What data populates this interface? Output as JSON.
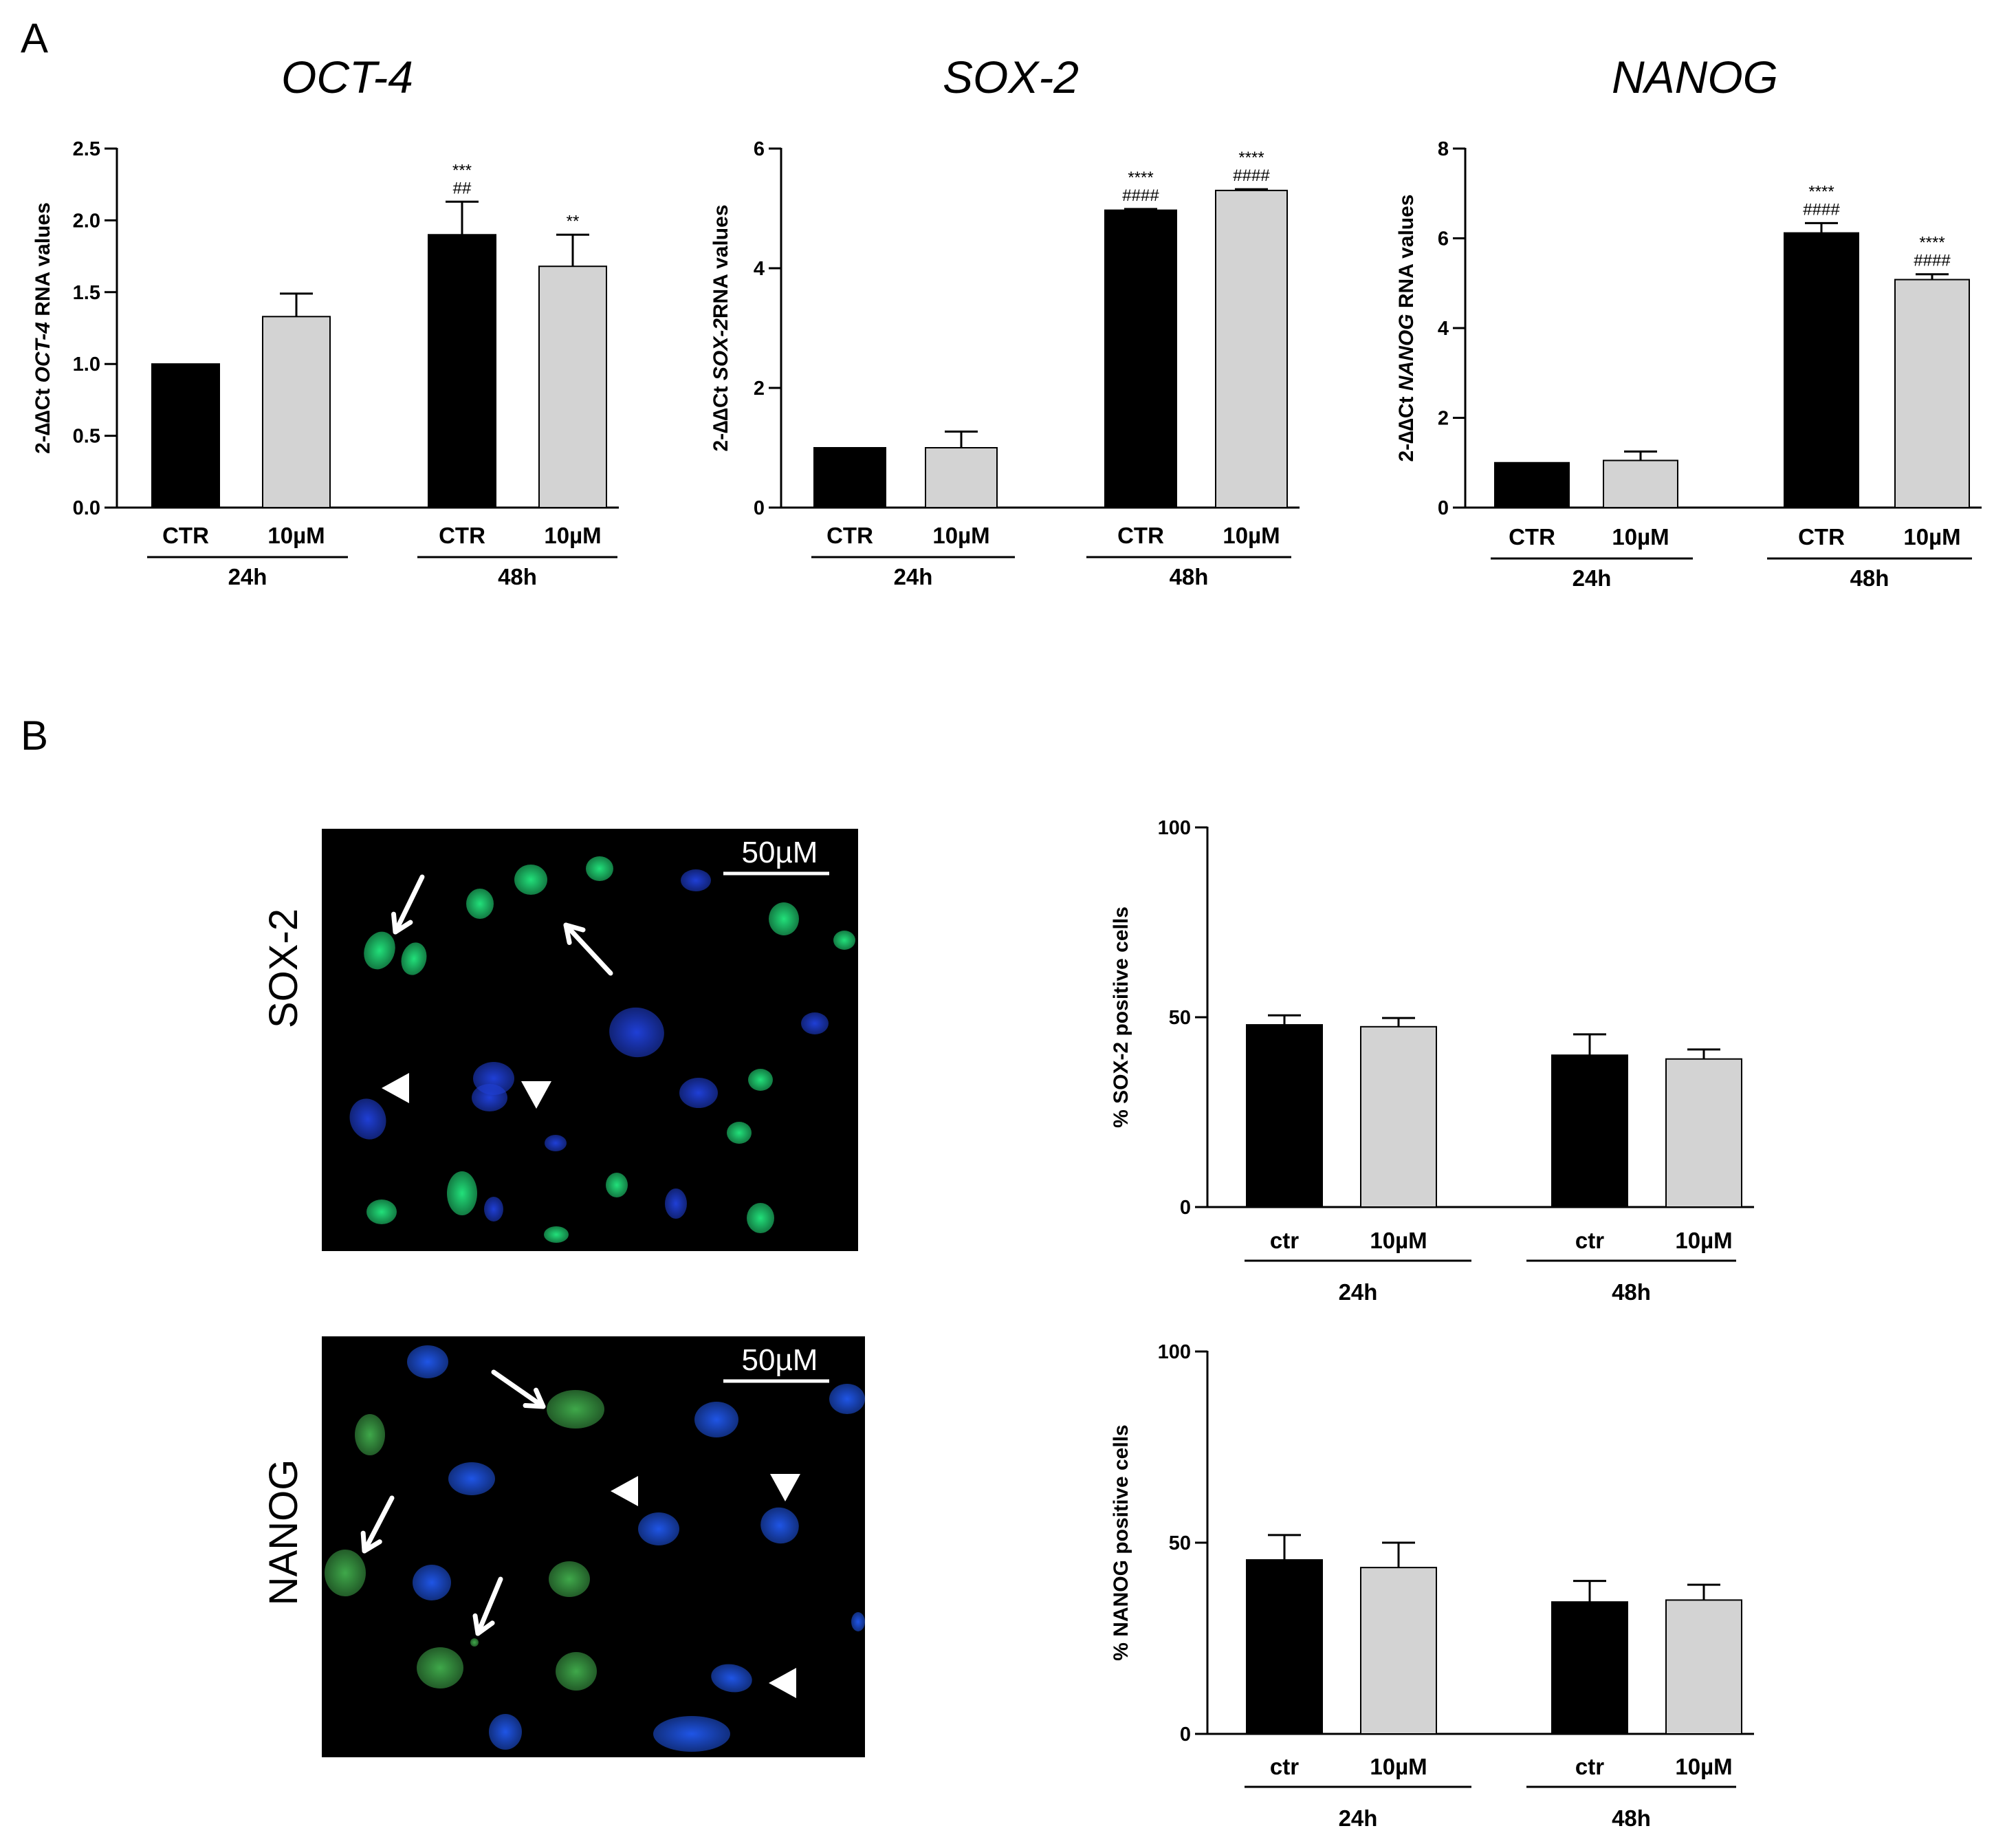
{
  "panels": {
    "a": "A",
    "b": "B"
  },
  "micrographs": [
    {
      "row_label": "SOX-2",
      "scale_bar": "50µM",
      "green": "#22e07a",
      "blue": "#1f3fd6"
    },
    {
      "row_label": "NANOG",
      "scale_bar": "50µM",
      "green": "#3fa84a",
      "blue": "#1f55e6"
    }
  ],
  "colors": {
    "ctr_bar": "#000000",
    "treated_bar": "#d3d3d3",
    "axis": "#000000"
  },
  "chart_data": [
    {
      "type": "bar",
      "title": "OCT-4",
      "ylabel_parts": [
        "2-∆∆Ct ",
        "OCT-4",
        " RNA values"
      ],
      "ylim": [
        0,
        2.5
      ],
      "yticks": [
        "0.0",
        "0.5",
        "1.0",
        "1.5",
        "2.0",
        "2.5"
      ],
      "groups": [
        {
          "label": "24h",
          "bars": [
            {
              "category": "CTR",
              "value": 1.0,
              "error": 0,
              "color": "#000000",
              "annotations": []
            },
            {
              "category": "10µM",
              "value": 1.33,
              "error": 0.16,
              "color": "#d3d3d3",
              "annotations": []
            }
          ]
        },
        {
          "label": "48h",
          "bars": [
            {
              "category": "CTR",
              "value": 1.9,
              "error": 0.23,
              "color": "#000000",
              "annotations": [
                "***",
                "##"
              ]
            },
            {
              "category": "10µM",
              "value": 1.68,
              "error": 0.22,
              "color": "#d3d3d3",
              "annotations": [
                "**"
              ]
            }
          ]
        }
      ]
    },
    {
      "type": "bar",
      "title": "SOX-2",
      "ylabel_parts": [
        "2-∆∆Ct ",
        "SOX-2",
        "RNA values"
      ],
      "ylim": [
        0,
        6
      ],
      "yticks": [
        "0",
        "2",
        "4",
        "6"
      ],
      "groups": [
        {
          "label": "24h",
          "bars": [
            {
              "category": "CTR",
              "value": 1.0,
              "error": 0,
              "color": "#000000",
              "annotations": []
            },
            {
              "category": "10µM",
              "value": 1.0,
              "error": 0.27,
              "color": "#d3d3d3",
              "annotations": []
            }
          ]
        },
        {
          "label": "48h",
          "bars": [
            {
              "category": "CTR",
              "value": 4.97,
              "error": 0.02,
              "color": "#000000",
              "annotations": [
                "****",
                "####"
              ]
            },
            {
              "category": "10µM",
              "value": 5.3,
              "error": 0.02,
              "color": "#d3d3d3",
              "annotations": [
                "****",
                "####"
              ]
            }
          ]
        }
      ]
    },
    {
      "type": "bar",
      "title": "NANOG",
      "ylabel_parts": [
        "2-∆∆Ct ",
        "NANOG",
        " RNA values"
      ],
      "ylim": [
        0,
        8
      ],
      "yticks": [
        "0",
        "2",
        "4",
        "6",
        "8"
      ],
      "groups": [
        {
          "label": "24h",
          "bars": [
            {
              "category": "CTR",
              "value": 1.0,
              "error": 0,
              "color": "#000000",
              "annotations": []
            },
            {
              "category": "10µM",
              "value": 1.05,
              "error": 0.2,
              "color": "#d3d3d3",
              "annotations": []
            }
          ]
        },
        {
          "label": "48h",
          "bars": [
            {
              "category": "CTR",
              "value": 6.12,
              "error": 0.22,
              "color": "#000000",
              "annotations": [
                "****",
                "####"
              ]
            },
            {
              "category": "10µM",
              "value": 5.08,
              "error": 0.12,
              "color": "#d3d3d3",
              "annotations": [
                "****",
                "####"
              ]
            }
          ]
        }
      ]
    },
    {
      "type": "bar",
      "title": "",
      "ylabel": "% SOX-2 positive cells",
      "ylim": [
        0,
        100
      ],
      "yticks": [
        "0",
        "50",
        "100"
      ],
      "groups": [
        {
          "label": "24h",
          "bars": [
            {
              "category": "ctr",
              "value": 48,
              "error": 2.5,
              "color": "#000000",
              "annotations": []
            },
            {
              "category": "10µM",
              "value": 47.5,
              "error": 2.3,
              "color": "#d3d3d3",
              "annotations": []
            }
          ]
        },
        {
          "label": "48h",
          "bars": [
            {
              "category": "ctr",
              "value": 40,
              "error": 5.5,
              "color": "#000000",
              "annotations": []
            },
            {
              "category": "10µM",
              "value": 39,
              "error": 2.5,
              "color": "#d3d3d3",
              "annotations": []
            }
          ]
        }
      ]
    },
    {
      "type": "bar",
      "title": "",
      "ylabel": "% NANOG positive cells",
      "ylim": [
        0,
        100
      ],
      "yticks": [
        "0",
        "50",
        "100"
      ],
      "groups": [
        {
          "label": "24h",
          "bars": [
            {
              "category": "ctr",
              "value": 45.5,
              "error": 6.5,
              "color": "#000000",
              "annotations": []
            },
            {
              "category": "10µM",
              "value": 43.5,
              "error": 6.5,
              "color": "#d3d3d3",
              "annotations": []
            }
          ]
        },
        {
          "label": "48h",
          "bars": [
            {
              "category": "ctr",
              "value": 34.5,
              "error": 5.5,
              "color": "#000000",
              "annotations": []
            },
            {
              "category": "10µM",
              "value": 35,
              "error": 4,
              "color": "#d3d3d3",
              "annotations": []
            }
          ]
        }
      ]
    }
  ]
}
